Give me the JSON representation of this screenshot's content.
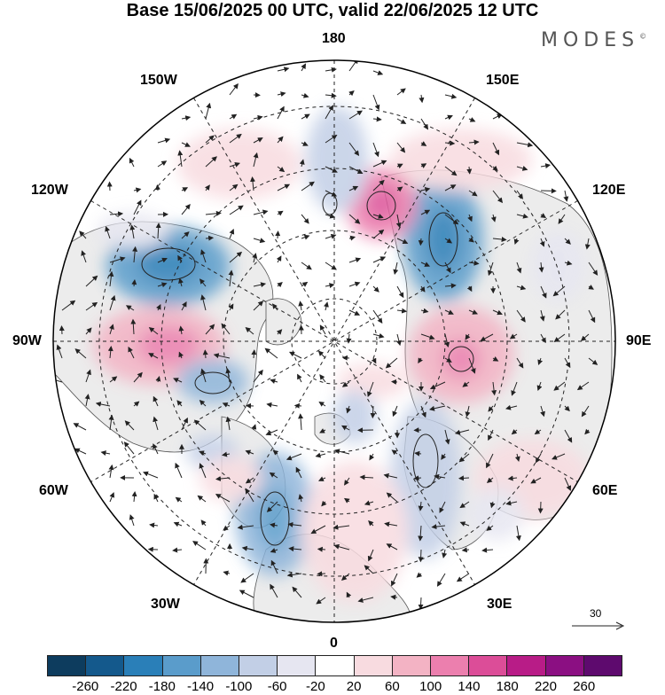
{
  "title": "Base 15/06/2025 00 UTC, valid 22/06/2025 12 UTC",
  "brand": "MODES",
  "brand_mark": "©",
  "longitude_labels": {
    "top": "180",
    "bottom": "0",
    "left": "90W",
    "right": "90E",
    "lon150w": "150W",
    "lon150e": "150E",
    "lon120w": "120W",
    "lon120e": "120E",
    "lon60w": "60W",
    "lon60e": "60E",
    "lon30w": "30W",
    "lon30e": "30E"
  },
  "reference_vector": "30",
  "colorbar": {
    "colors": [
      "#0d3c5e",
      "#14598c",
      "#2a7fb8",
      "#5a9ccb",
      "#8fb5da",
      "#c2cfe6",
      "#e6e6f1",
      "#ffffff",
      "#f8dbe0",
      "#f3b3c4",
      "#ec7fae",
      "#dc4d98",
      "#b81c87",
      "#8b0f82",
      "#5e0a6e"
    ],
    "tick_labels": [
      "-260",
      "-220",
      "-180",
      "-140",
      "-100",
      "-60",
      "-20",
      "20",
      "60",
      "100",
      "140",
      "180",
      "220",
      "260"
    ]
  },
  "map_colors": {
    "land": "#ececec",
    "ocean": "#ffffff",
    "coast": "#444444",
    "grid": "#222222",
    "vector": "#222222"
  }
}
